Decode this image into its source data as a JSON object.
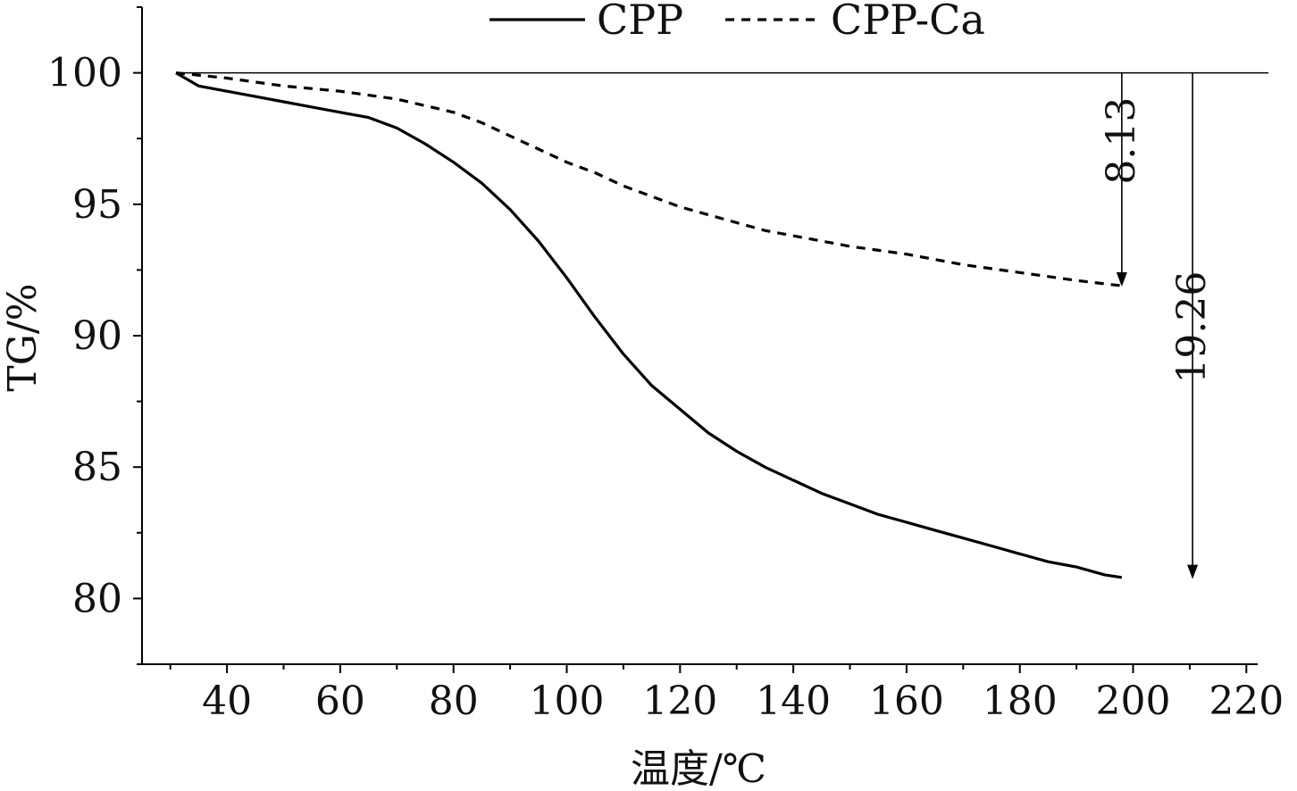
{
  "chart_data": {
    "type": "line",
    "title": "",
    "xlabel": "温度/℃",
    "ylabel": "TG/%",
    "xlim": [
      25,
      222
    ],
    "ylim": [
      77.5,
      102.5
    ],
    "x_ticks": [
      40,
      60,
      80,
      100,
      120,
      140,
      160,
      180,
      200,
      220
    ],
    "y_ticks": [
      80,
      85,
      90,
      95,
      100
    ],
    "grid": false,
    "legend_position": "top-center",
    "reference_line_y": 100,
    "series": [
      {
        "name": "CPP",
        "style": "solid",
        "color": "#000000",
        "x": [
          31,
          35,
          40,
          45,
          50,
          55,
          60,
          65,
          70,
          75,
          80,
          85,
          90,
          95,
          100,
          105,
          110,
          115,
          120,
          125,
          130,
          135,
          140,
          145,
          150,
          155,
          160,
          165,
          170,
          175,
          180,
          185,
          190,
          195,
          198
        ],
        "y": [
          100.0,
          99.5,
          99.3,
          99.1,
          98.9,
          98.7,
          98.5,
          98.3,
          97.9,
          97.3,
          96.6,
          95.8,
          94.8,
          93.6,
          92.2,
          90.7,
          89.3,
          88.1,
          87.2,
          86.3,
          85.6,
          85.0,
          84.5,
          84.0,
          83.6,
          83.2,
          82.9,
          82.6,
          82.3,
          82.0,
          81.7,
          81.4,
          81.2,
          80.9,
          80.8
        ]
      },
      {
        "name": "CPP-Ca",
        "style": "dashed",
        "color": "#000000",
        "x": [
          31,
          40,
          50,
          60,
          70,
          80,
          85,
          90,
          95,
          100,
          105,
          110,
          115,
          120,
          125,
          130,
          135,
          140,
          145,
          150,
          160,
          170,
          180,
          190,
          198
        ],
        "y": [
          100.0,
          99.8,
          99.5,
          99.3,
          99.0,
          98.5,
          98.1,
          97.6,
          97.1,
          96.6,
          96.2,
          95.7,
          95.3,
          94.9,
          94.6,
          94.3,
          94.0,
          93.8,
          93.6,
          93.4,
          93.1,
          92.7,
          92.4,
          92.1,
          91.9
        ]
      }
    ],
    "annotations": [
      {
        "text": "8.13",
        "x": 198,
        "y_from": 100,
        "y_to": 91.87
      },
      {
        "text": "19.26",
        "x": 210.5,
        "y_from": 100,
        "y_to": 80.74
      }
    ]
  }
}
